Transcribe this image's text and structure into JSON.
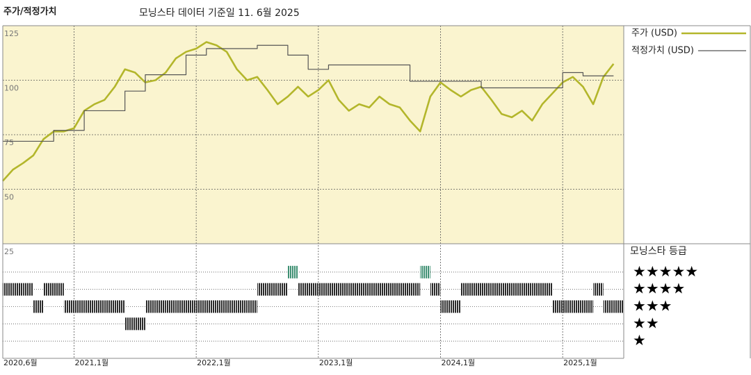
{
  "chart_data": [
    {
      "type": "line",
      "title": "주가/적정가치",
      "subtitle": "모닝스타 데이터 기준일 11. 6월 2025",
      "x": [
        "2020-06",
        "2020-07",
        "2020-08",
        "2020-09",
        "2020-10",
        "2020-11",
        "2020-12",
        "2021-01",
        "2021-02",
        "2021-03",
        "2021-04",
        "2021-05",
        "2021-06",
        "2021-07",
        "2021-08",
        "2021-09",
        "2021-10",
        "2021-11",
        "2021-12",
        "2022-01",
        "2022-02",
        "2022-03",
        "2022-04",
        "2022-05",
        "2022-06",
        "2022-07",
        "2022-08",
        "2022-09",
        "2022-10",
        "2022-11",
        "2022-12",
        "2023-01",
        "2023-02",
        "2023-03",
        "2023-04",
        "2023-05",
        "2023-06",
        "2023-07",
        "2023-08",
        "2023-09",
        "2023-10",
        "2023-11",
        "2023-12",
        "2024-01",
        "2024-02",
        "2024-03",
        "2024-04",
        "2024-05",
        "2024-06",
        "2024-07",
        "2024-08",
        "2024-09",
        "2024-10",
        "2024-11",
        "2024-12",
        "2025-01",
        "2025-02",
        "2025-03",
        "2025-04",
        "2025-05",
        "2025-06"
      ],
      "series": [
        {
          "name": "주가 (USD)",
          "color": "#b3b62b",
          "values": [
            53.8,
            59,
            62,
            65.5,
            73,
            76.5,
            76.5,
            78,
            86,
            89,
            91,
            97,
            105,
            103.5,
            99,
            100,
            103.5,
            110,
            113,
            114.5,
            117.5,
            116,
            113,
            105,
            100,
            101.5,
            95.5,
            89,
            92.5,
            97,
            92.5,
            95.5,
            100,
            91,
            86,
            89,
            87.5,
            92.5,
            89,
            87.5,
            81.5,
            76.5,
            92.5,
            99,
            95.5,
            92.5,
            95.5,
            97,
            91,
            84.5,
            83,
            86,
            81.5,
            89,
            94,
            99,
            101.5,
            97,
            89,
            101.5,
            107.5
          ]
        },
        {
          "name": "적정가치 (USD)",
          "color": "#555555",
          "step": true,
          "values": [
            72,
            72,
            72,
            72,
            72,
            77,
            77,
            77,
            86,
            86,
            86,
            86,
            95,
            95,
            102.5,
            102.5,
            102.5,
            102.5,
            111.5,
            111.5,
            114.5,
            114.5,
            114.5,
            114.5,
            114.5,
            116,
            116,
            116,
            111.5,
            111.5,
            105,
            105,
            107,
            107,
            107,
            107,
            107,
            107,
            107,
            107,
            99.5,
            99.5,
            99.5,
            99.5,
            99.5,
            99.5,
            99.5,
            96.5,
            96.5,
            96.5,
            96.5,
            96.5,
            96.5,
            96.5,
            96.5,
            103.5,
            103.5,
            102,
            102,
            102,
            102
          ]
        }
      ],
      "xlim": [
        "2020-06",
        "2025-07"
      ],
      "xticks": [
        {
          "value": "2020-06",
          "label": "2020,6월"
        },
        {
          "value": "2021-01",
          "label": "2021,1월"
        },
        {
          "value": "2022-01",
          "label": "2022,1월"
        },
        {
          "value": "2023-01",
          "label": "2023,1월"
        },
        {
          "value": "2024-01",
          "label": "2024,1월"
        },
        {
          "value": "2025-01",
          "label": "2025,1월"
        }
      ],
      "ylim": [
        25,
        125
      ],
      "yticks": [
        25,
        50,
        75,
        100,
        125
      ],
      "grid": true,
      "background": "#faf4cf"
    },
    {
      "type": "rating",
      "title": "모닝스타 등급",
      "x": [
        "2020-06",
        "2020-07",
        "2020-08",
        "2020-09",
        "2020-10",
        "2020-11",
        "2020-12",
        "2021-01",
        "2021-02",
        "2021-03",
        "2021-04",
        "2021-05",
        "2021-06",
        "2021-07",
        "2021-08",
        "2021-09",
        "2021-10",
        "2021-11",
        "2021-12",
        "2022-01",
        "2022-02",
        "2022-03",
        "2022-04",
        "2022-05",
        "2022-06",
        "2022-07",
        "2022-08",
        "2022-09",
        "2022-10",
        "2022-11",
        "2022-12",
        "2023-01",
        "2023-02",
        "2023-03",
        "2023-04",
        "2023-05",
        "2023-06",
        "2023-07",
        "2023-08",
        "2023-09",
        "2023-10",
        "2023-11",
        "2023-12",
        "2024-01",
        "2024-02",
        "2024-03",
        "2024-04",
        "2024-05",
        "2024-06",
        "2024-07",
        "2024-08",
        "2024-09",
        "2024-10",
        "2024-11",
        "2024-12",
        "2025-01",
        "2025-02",
        "2025-03",
        "2025-04",
        "2025-05",
        "2025-06"
      ],
      "values": [
        4,
        4,
        4,
        3,
        4,
        4,
        3,
        3,
        3,
        3,
        3,
        3,
        2,
        2,
        3,
        3,
        3,
        3,
        3,
        3,
        3,
        3,
        3,
        3,
        3,
        4,
        4,
        4,
        5,
        4,
        4,
        4,
        4,
        4,
        4,
        4,
        4,
        4,
        4,
        4,
        4,
        5,
        4,
        3,
        3,
        4,
        4,
        4,
        4,
        4,
        4,
        4,
        4,
        4,
        3,
        3,
        3,
        3,
        4,
        3,
        3
      ],
      "color": "#2a2a2a",
      "top_color": "#3d8f72",
      "ylim": [
        0,
        6
      ],
      "yticks": [
        {
          "value": 5,
          "label": "★★★★★"
        },
        {
          "value": 4,
          "label": "★★★★"
        },
        {
          "value": 3,
          "label": "★★★"
        },
        {
          "value": 2,
          "label": "★★"
        },
        {
          "value": 1,
          "label": "★"
        }
      ]
    }
  ]
}
